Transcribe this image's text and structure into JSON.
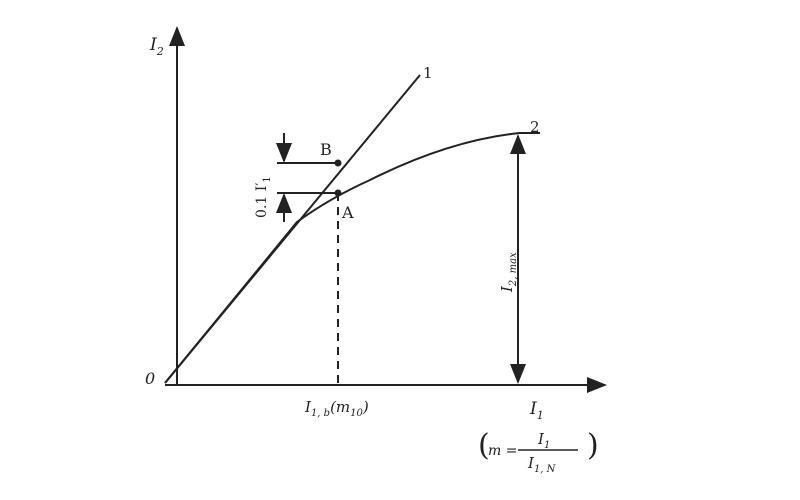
{
  "diagram": {
    "y_axis_label": "I",
    "y_axis_sub": "2",
    "x_axis_label": "I",
    "x_axis_sub": "1",
    "origin_label": "0",
    "curve1_label": "1",
    "curve2_label": "2",
    "point_a": "A",
    "point_b": "B",
    "delta_label": "0.1 I′",
    "delta_sub": "1",
    "imax_label": "I",
    "imax_sub": "2, max",
    "xb_label": "I",
    "xb_sub": "1, b",
    "xb_paren": "(m",
    "xb_paren_sub": "10",
    "xb_close": ")",
    "formula_m": "m =",
    "formula_num": "I",
    "formula_num_sub": "1",
    "formula_den": "I",
    "formula_den_sub": "1, N"
  },
  "colors": {
    "ink": "#222222"
  }
}
